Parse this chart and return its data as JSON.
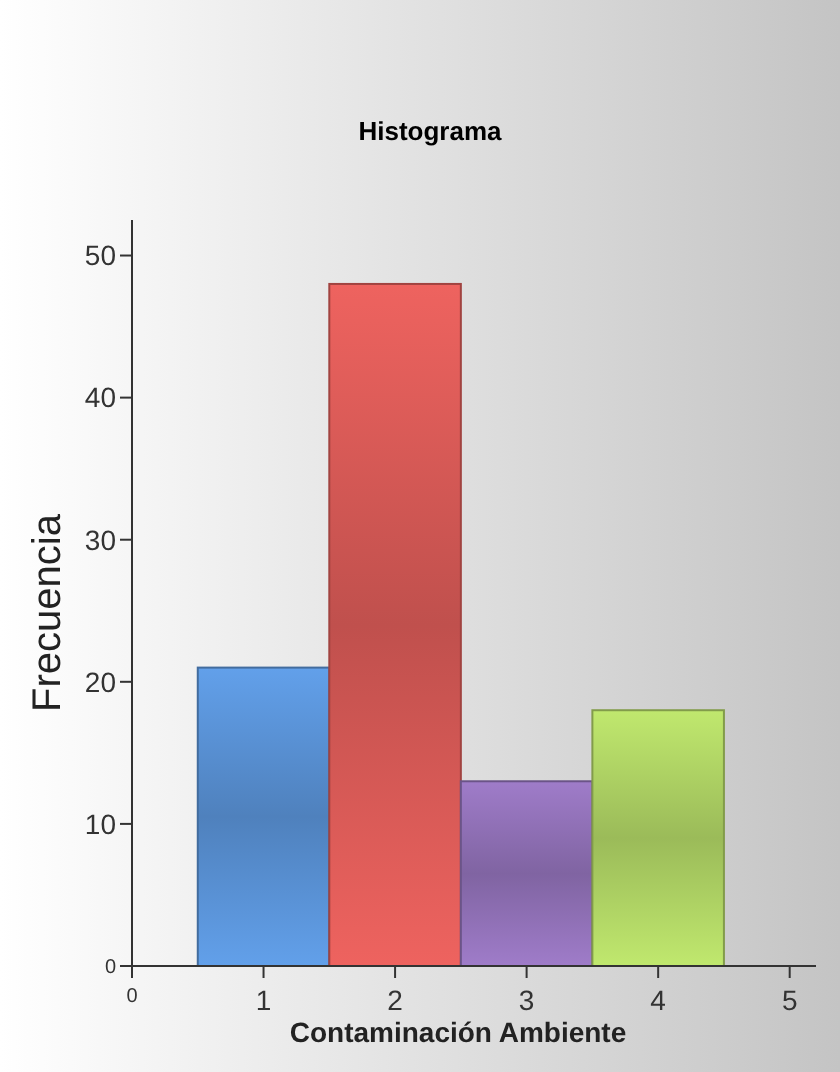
{
  "chart_data": {
    "type": "histogram",
    "title": "Histograma",
    "xlabel": "Contaminación Ambiente",
    "ylabel": "Frecuencia",
    "bins": [
      0.5,
      1.5,
      2.5,
      3.5,
      4.5
    ],
    "values": [
      21,
      48,
      13,
      18
    ],
    "colors": [
      "#4f81bd",
      "#c0504d",
      "#8064a2",
      "#9bbb59"
    ],
    "xlim": [
      0,
      5.2
    ],
    "xticks": [
      0,
      1,
      2,
      3,
      4,
      5
    ],
    "ylim": [
      0,
      52.5
    ],
    "yticks": [
      0,
      10,
      20,
      30,
      40,
      50
    ],
    "grid": false
  }
}
